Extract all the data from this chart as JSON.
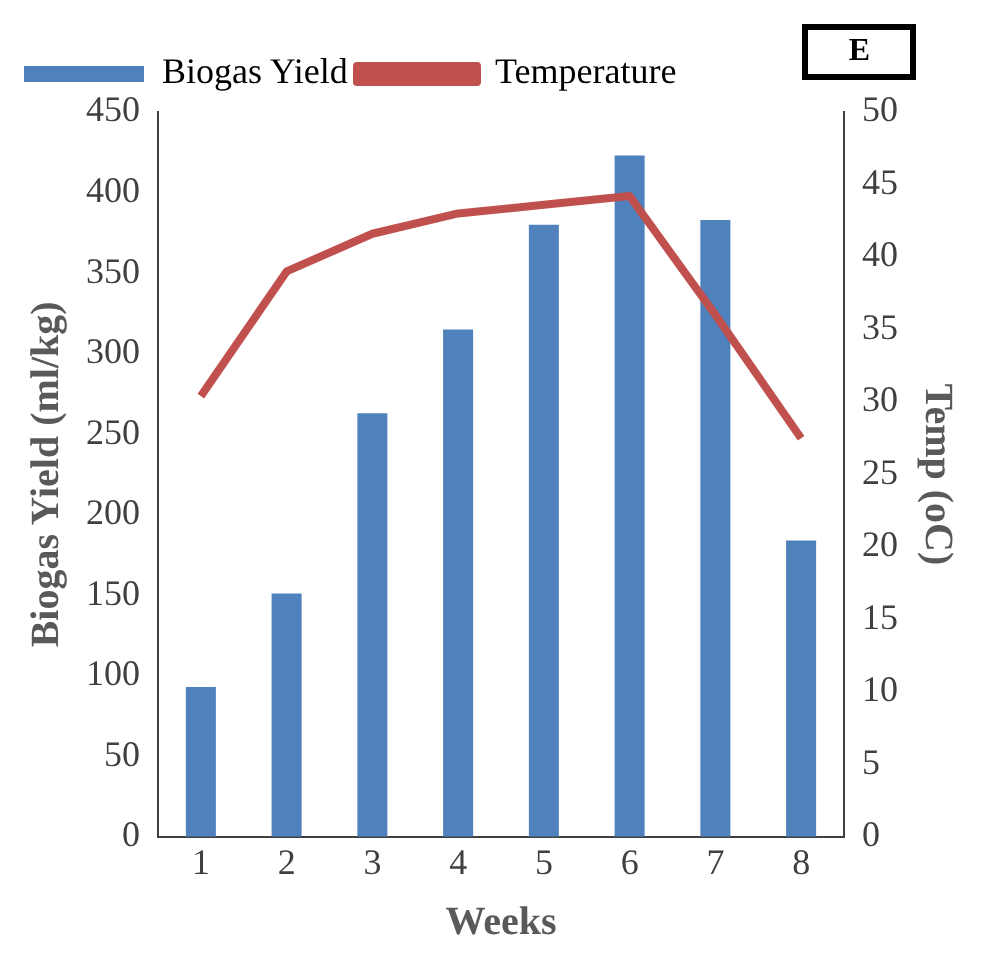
{
  "chart_data": {
    "type": "bar",
    "categories": [
      "1",
      "2",
      "3",
      "4",
      "5",
      "6",
      "7",
      "8"
    ],
    "series": [
      {
        "name": "Biogas Yield",
        "color": "#4f81bd",
        "values": [
          93,
          151,
          263,
          315,
          380,
          423,
          383,
          184
        ]
      },
      {
        "name": "Temperature",
        "type": "line",
        "axis": "y2",
        "color": "#c0504d",
        "values": [
          30.4,
          39,
          41.6,
          43,
          43.6,
          44.2,
          36,
          27.5
        ]
      }
    ],
    "xlabel": "Weeks",
    "ylabel": "Biogas Yield (ml/kg)",
    "y2label": "Temp (oC)",
    "ylim": [
      0,
      450
    ],
    "yticks": [
      0,
      50,
      100,
      150,
      200,
      250,
      300,
      350,
      400,
      450
    ],
    "y2lim": [
      0,
      50
    ],
    "y2ticks": [
      0,
      5,
      10,
      15,
      20,
      25,
      30,
      35,
      40,
      45,
      50
    ],
    "grid": false,
    "legend": "top",
    "marker": "none",
    "annotations": [
      "E"
    ]
  }
}
